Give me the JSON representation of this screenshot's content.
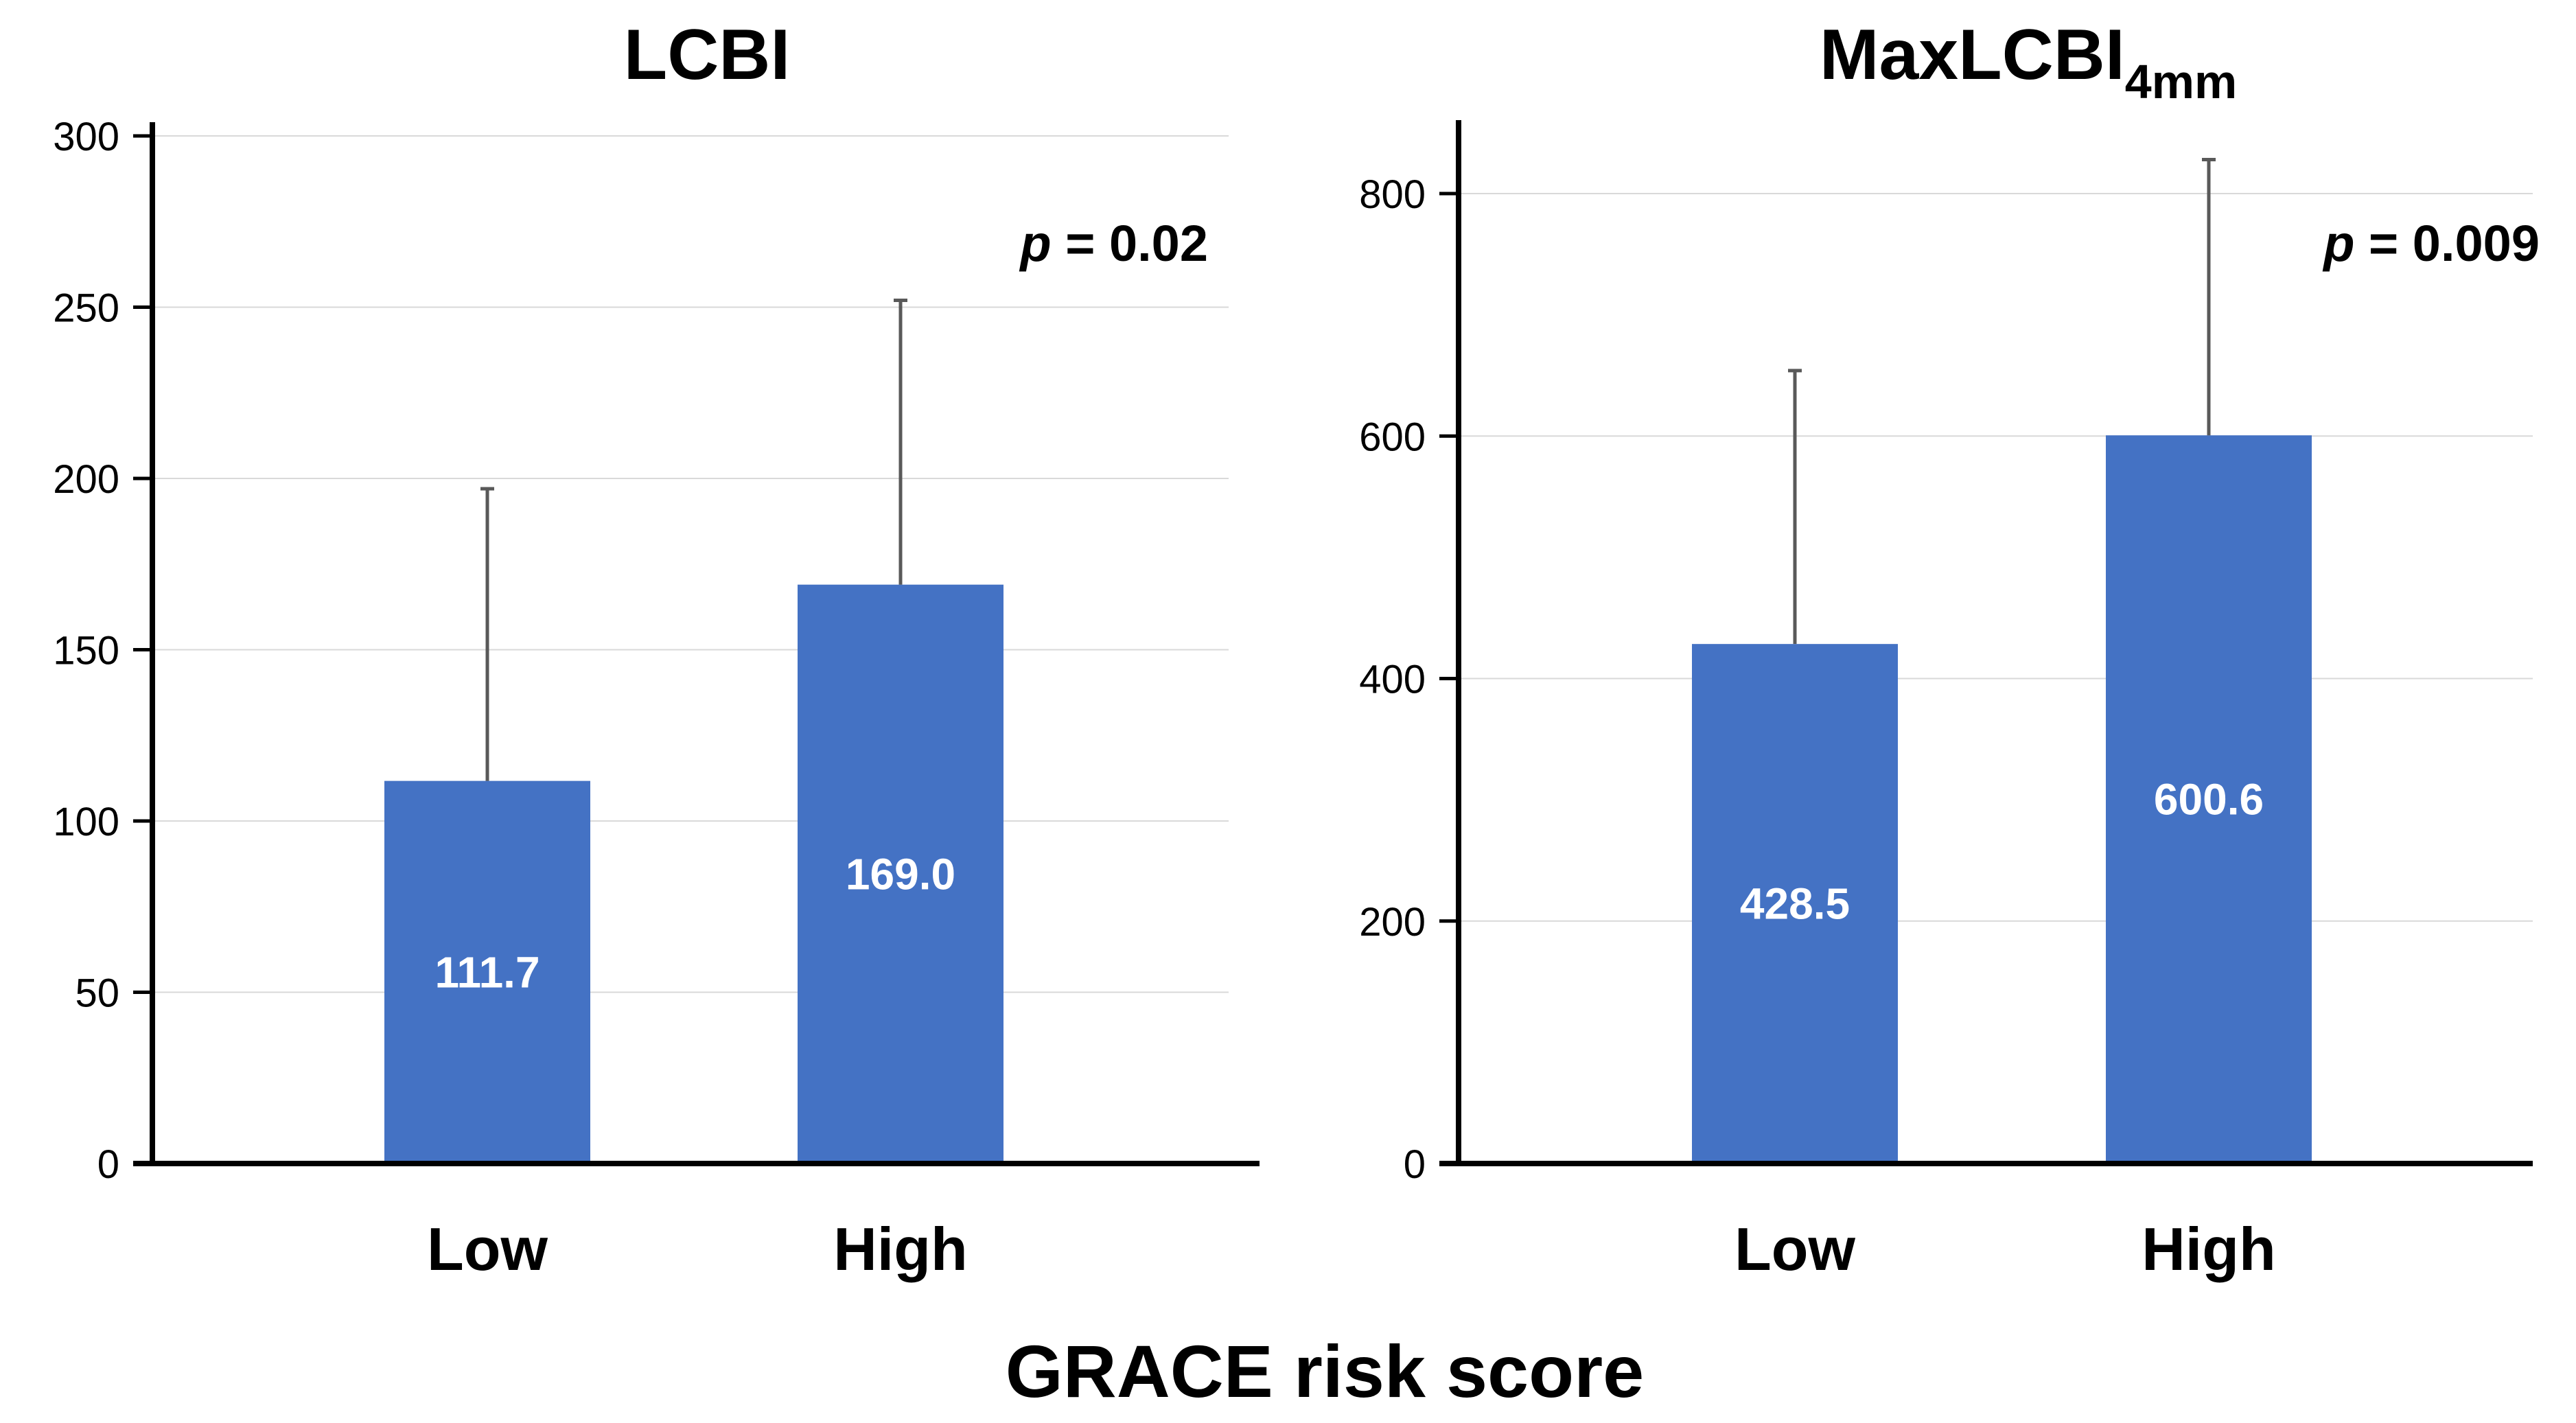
{
  "chart_data": [
    {
      "type": "bar",
      "title": "LCBI",
      "title_sub": "",
      "categories": [
        "Low",
        "High"
      ],
      "values": [
        111.7,
        169.0
      ],
      "error_upper": [
        197,
        252
      ],
      "data_labels": [
        "111.7",
        "169.0"
      ],
      "ylim": [
        0,
        300
      ],
      "yticks": [
        0,
        50,
        100,
        150,
        200,
        250,
        300
      ],
      "annotation": {
        "p_label": "p",
        "p_value": "= 0.02"
      },
      "grid": true,
      "bar_color": "#4472C4"
    },
    {
      "type": "bar",
      "title": "MaxLCBI",
      "title_sub": "4mm",
      "categories": [
        "Low",
        "High"
      ],
      "values": [
        428.5,
        600.6
      ],
      "error_upper": [
        654,
        828
      ],
      "data_labels": [
        "428.5",
        "600.6"
      ],
      "ylim": [
        0,
        850
      ],
      "yticks": [
        0,
        200,
        400,
        600,
        800
      ],
      "annotation": {
        "p_label": "p",
        "p_value": "= 0.009"
      },
      "grid": true,
      "bar_color": "#4472C4"
    }
  ],
  "xlabel": "GRACE risk score"
}
